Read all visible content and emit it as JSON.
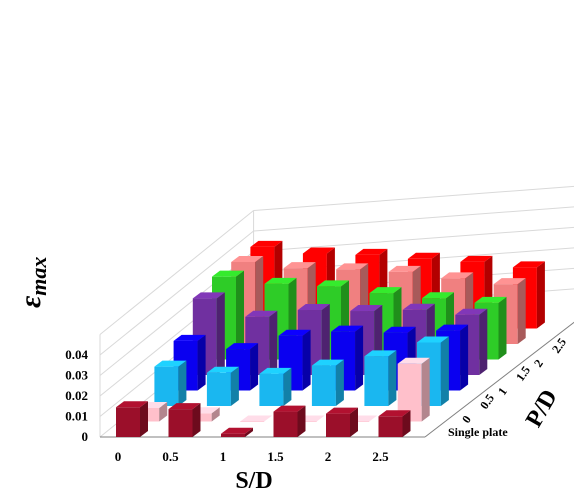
{
  "chart_data": {
    "type": "bar",
    "subtype": "3d-grouped-bar",
    "ylabel_main": "ε",
    "ylabel_sub": "max",
    "xlabel": "S/D",
    "zlabel": "P/D",
    "categories": [
      "0",
      "0.5",
      "1",
      "1.5",
      "2",
      "2.5"
    ],
    "y_ticks": [
      "0",
      "0.01",
      "0.02",
      "0.03",
      "0.04"
    ],
    "ylim": [
      0,
      0.04
    ],
    "grid": true,
    "series": [
      {
        "name": "Single plate",
        "color": "#9b0f2a",
        "values": [
          0.0145,
          0.0136,
          0.0016,
          0.0124,
          0.0114,
          0.0101
        ]
      },
      {
        "name": "0",
        "color": "#ffc0cb",
        "values": [
          0.0066,
          0.004,
          0.0,
          0.0,
          0.0,
          0.0282
        ]
      },
      {
        "name": "0.5",
        "color": "#1ab7f0",
        "values": [
          0.0192,
          0.0162,
          0.0157,
          0.0197,
          0.0242,
          0.031
        ]
      },
      {
        "name": "1",
        "color": "#0a00f0",
        "values": [
          0.0242,
          0.0202,
          0.0267,
          0.0287,
          0.0282,
          0.0292
        ]
      },
      {
        "name": "1.5",
        "color": "#7030a0",
        "values": [
          0.0374,
          0.0284,
          0.0317,
          0.0312,
          0.0318,
          0.0294
        ]
      },
      {
        "name": "2",
        "color": "#2ecc27",
        "values": [
          0.0404,
          0.0369,
          0.0357,
          0.0324,
          0.0299,
          0.0276
        ]
      },
      {
        "name": "2.5",
        "color": "#f08080",
        "values": [
          0.04,
          0.037,
          0.0364,
          0.0352,
          0.032,
          0.0292
        ]
      },
      {
        "name": "",
        "color": "#ff0000",
        "values": [
          0.0398,
          0.0366,
          0.0359,
          0.034,
          0.0325,
          0.0298
        ]
      }
    ]
  }
}
